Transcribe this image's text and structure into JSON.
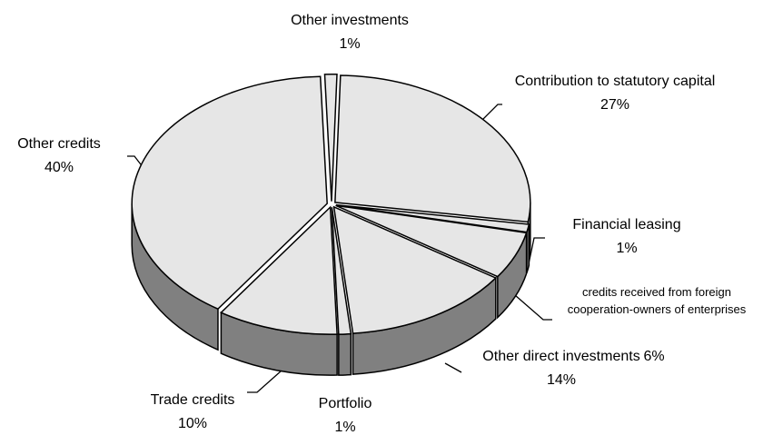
{
  "chart_data": {
    "type": "pie3d",
    "categories": [
      "Other investments",
      "Contribution to statutory capital",
      "Financial leasing",
      "credits received from foreign cooperation-owners of enterprises",
      "Other direct investments",
      "Portfolio",
      "Trade credits",
      "Other credits"
    ],
    "values": [
      1,
      27,
      1,
      6,
      14,
      1,
      10,
      40
    ],
    "value_labels": [
      "1%",
      "27%",
      "1%",
      "6%",
      "14%",
      "1%",
      "10%",
      "40%"
    ],
    "color": "#e6e6e6",
    "side_color": "#808080"
  }
}
